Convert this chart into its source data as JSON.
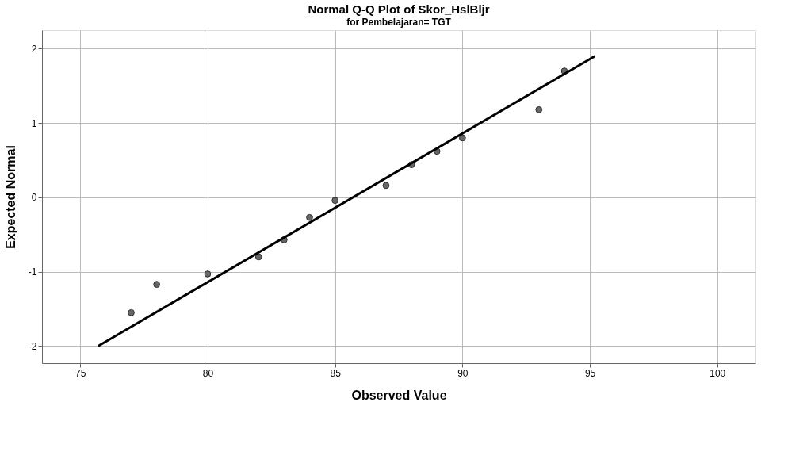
{
  "chart_data": {
    "type": "scatter",
    "title": "Normal Q-Q Plot of Skor_HslBljr",
    "subtitle": "for Pembelajaran= TGT",
    "xlabel": "Observed Value",
    "ylabel": "Expected Normal",
    "xlim": [
      73.5,
      101.5
    ],
    "xticks": [
      75,
      80,
      85,
      90,
      95,
      100
    ],
    "ylim": [
      -2.23,
      2.25
    ],
    "yticks": [
      -2,
      -1,
      0,
      1,
      2
    ],
    "grid": true,
    "series": [
      {
        "type": "scatter",
        "color": "#666666",
        "marker": "circle",
        "x": [
          77,
          78,
          80,
          82,
          83,
          84,
          85,
          87,
          88,
          89,
          90,
          93,
          94
        ],
        "values": [
          -1.55,
          -1.17,
          -1.03,
          -0.8,
          -0.57,
          -0.27,
          -0.04,
          0.16,
          0.44,
          0.62,
          0.8,
          1.18,
          1.7
        ]
      },
      {
        "type": "line",
        "color": "#000000",
        "x": [
          75.7,
          95.2
        ],
        "values": [
          -2.0,
          1.9
        ]
      }
    ]
  }
}
